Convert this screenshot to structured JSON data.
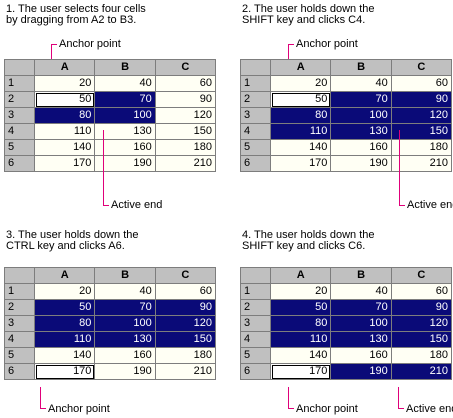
{
  "columns": [
    "A",
    "B",
    "C"
  ],
  "rows": [
    {
      "label": "1",
      "values": [
        "20",
        "40",
        "60"
      ]
    },
    {
      "label": "2",
      "values": [
        "50",
        "70",
        "90"
      ]
    },
    {
      "label": "3",
      "values": [
        "80",
        "100",
        "120"
      ]
    },
    {
      "label": "4",
      "values": [
        "110",
        "130",
        "150"
      ]
    },
    {
      "label": "5",
      "values": [
        "140",
        "160",
        "180"
      ]
    },
    {
      "label": "6",
      "values": [
        "170",
        "190",
        "210"
      ]
    }
  ],
  "panels": [
    {
      "caption_line1": "1. The user selects four cells",
      "caption_line2": "by dragging from A2 to B3.",
      "selected": [
        [
          1,
          0
        ],
        [
          1,
          1
        ],
        [
          2,
          0
        ],
        [
          2,
          1
        ]
      ],
      "anchor": [
        1,
        0
      ],
      "label_anchor": "Anchor point",
      "label_active": "Active end"
    },
    {
      "caption_line1": "2. The user holds down the",
      "caption_line2": "SHIFT key and clicks C4.",
      "selected": [
        [
          1,
          0
        ],
        [
          1,
          1
        ],
        [
          1,
          2
        ],
        [
          2,
          0
        ],
        [
          2,
          1
        ],
        [
          2,
          2
        ],
        [
          3,
          0
        ],
        [
          3,
          1
        ],
        [
          3,
          2
        ]
      ],
      "anchor": [
        1,
        0
      ],
      "label_anchor": "Anchor point",
      "label_active": "Active end"
    },
    {
      "caption_line1": "3. The user holds down the",
      "caption_line2": "CTRL key and clicks A6.",
      "selected": [
        [
          1,
          0
        ],
        [
          1,
          1
        ],
        [
          1,
          2
        ],
        [
          2,
          0
        ],
        [
          2,
          1
        ],
        [
          2,
          2
        ],
        [
          3,
          0
        ],
        [
          3,
          1
        ],
        [
          3,
          2
        ],
        [
          5,
          0
        ]
      ],
      "anchor": [
        5,
        0
      ],
      "label_anchor": "Anchor point",
      "label_active": ""
    },
    {
      "caption_line1": "4. The user holds down the",
      "caption_line2": "SHIFT key and clicks C6.",
      "selected": [
        [
          1,
          0
        ],
        [
          1,
          1
        ],
        [
          1,
          2
        ],
        [
          2,
          0
        ],
        [
          2,
          1
        ],
        [
          2,
          2
        ],
        [
          3,
          0
        ],
        [
          3,
          1
        ],
        [
          3,
          2
        ],
        [
          5,
          0
        ],
        [
          5,
          1
        ],
        [
          5,
          2
        ]
      ],
      "anchor": [
        5,
        0
      ],
      "label_anchor": "Anchor point",
      "label_active": "Active end"
    }
  ],
  "colors": {
    "selection": "#0a0a78",
    "header": "#c0c0c0",
    "cell": "#fffff4",
    "pointer": "#e0007a"
  }
}
